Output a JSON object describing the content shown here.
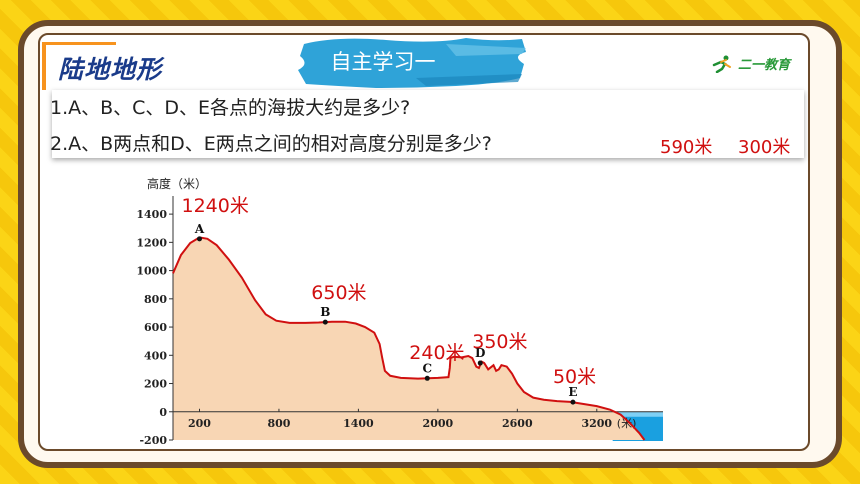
{
  "header": {
    "title": "陆地地形",
    "banner": "自主学习一",
    "logo_text": "二一教育"
  },
  "questions": [
    "1.A、B、C、D、E各点的海拔大约是多少?",
    "2.A、B两点和D、E两点之间的相对高度分别是多少?"
  ],
  "answers": [
    "590米",
    "300米"
  ],
  "chart_data": {
    "type": "area",
    "ylabel": "高度（米）",
    "xlabel": "(米)",
    "x_ticks": [
      200,
      800,
      1400,
      2000,
      2600,
      3200
    ],
    "x_tick_labels": [
      "200",
      "800",
      "1400",
      "2000",
      "2600",
      "3200"
    ],
    "y_ticks": [
      -200,
      0,
      200,
      400,
      600,
      800,
      1000,
      1200,
      1400
    ],
    "y_tick_labels": [
      "-200",
      "0",
      "200",
      "400",
      "600",
      "800",
      "1000",
      "1200",
      "1400"
    ],
    "xlim": [
      0,
      3700
    ],
    "ylim": [
      -200,
      1500
    ],
    "profile": [
      [
        0,
        980
      ],
      [
        60,
        1110
      ],
      [
        130,
        1195
      ],
      [
        200,
        1235
      ],
      [
        260,
        1225
      ],
      [
        330,
        1180
      ],
      [
        420,
        1080
      ],
      [
        520,
        950
      ],
      [
        620,
        790
      ],
      [
        700,
        690
      ],
      [
        780,
        645
      ],
      [
        880,
        630
      ],
      [
        1000,
        630
      ],
      [
        1100,
        632
      ],
      [
        1200,
        638
      ],
      [
        1300,
        638
      ],
      [
        1380,
        625
      ],
      [
        1450,
        600
      ],
      [
        1520,
        560
      ],
      [
        1560,
        480
      ],
      [
        1580,
        380
      ],
      [
        1600,
        290
      ],
      [
        1640,
        255
      ],
      [
        1720,
        240
      ],
      [
        1850,
        235
      ],
      [
        2000,
        240
      ],
      [
        2080,
        245
      ],
      [
        2090,
        310
      ],
      [
        2095,
        380
      ],
      [
        2120,
        390
      ],
      [
        2180,
        385
      ],
      [
        2230,
        395
      ],
      [
        2260,
        380
      ],
      [
        2290,
        320
      ],
      [
        2310,
        310
      ],
      [
        2330,
        355
      ],
      [
        2350,
        345
      ],
      [
        2380,
        300
      ],
      [
        2400,
        315
      ],
      [
        2420,
        330
      ],
      [
        2440,
        290
      ],
      [
        2460,
        300
      ],
      [
        2480,
        330
      ],
      [
        2520,
        320
      ],
      [
        2560,
        270
      ],
      [
        2600,
        200
      ],
      [
        2650,
        140
      ],
      [
        2720,
        100
      ],
      [
        2800,
        85
      ],
      [
        2900,
        75
      ],
      [
        3000,
        70
      ],
      [
        3100,
        55
      ],
      [
        3200,
        40
      ],
      [
        3300,
        15
      ],
      [
        3380,
        -20
      ],
      [
        3450,
        -80
      ],
      [
        3520,
        -150
      ],
      [
        3560,
        -200
      ]
    ],
    "points": [
      {
        "name": "A",
        "x": 200,
        "y": 1225
      },
      {
        "name": "B",
        "x": 1150,
        "y": 635
      },
      {
        "name": "C",
        "x": 1920,
        "y": 237
      },
      {
        "name": "D",
        "x": 2320,
        "y": 345
      },
      {
        "name": "E",
        "x": 3020,
        "y": 68
      }
    ],
    "annotations": [
      {
        "text": "1240米",
        "for": "A"
      },
      {
        "text": "650米",
        "for": "B"
      },
      {
        "text": "240米",
        "for": "C"
      },
      {
        "text": "350米",
        "for": "D"
      },
      {
        "text": "50米",
        "for": "E"
      }
    ],
    "sea_start_x": 3320,
    "colors": {
      "land": "#f8d6b4",
      "outline": "#d01010",
      "sea": "#1aa0e0",
      "seabed": "#f8e3cf"
    }
  }
}
